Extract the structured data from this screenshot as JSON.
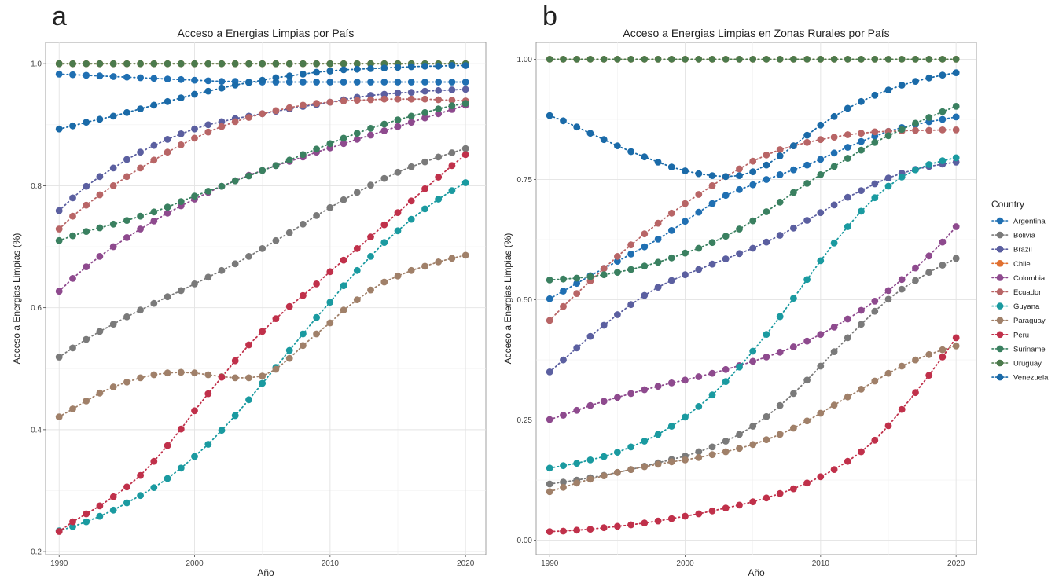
{
  "panels": [
    {
      "letter": "a",
      "title": "Acceso a Energias Limpias por País"
    },
    {
      "letter": "b",
      "title": "Acceso a Energias Limpias en Zonas Rurales por País"
    }
  ],
  "legend": {
    "title": "Country",
    "items": [
      {
        "name": "Argentina",
        "color": "#1f6fb2"
      },
      {
        "name": "Bolivia",
        "color": "#7a7a7a"
      },
      {
        "name": "Brazil",
        "color": "#5b5fa0"
      },
      {
        "name": "Chile",
        "color": "#e07030"
      },
      {
        "name": "Colombia",
        "color": "#8e4a8e"
      },
      {
        "name": "Ecuador",
        "color": "#b86566"
      },
      {
        "name": "Guyana",
        "color": "#1a9aa0"
      },
      {
        "name": "Paraguay",
        "color": "#a08069"
      },
      {
        "name": "Peru",
        "color": "#c0304a"
      },
      {
        "name": "Suriname",
        "color": "#3a8060"
      },
      {
        "name": "Uruguay",
        "color": "#4c7a4c"
      },
      {
        "name": "Venezuela",
        "color": "#1a6aa8"
      }
    ]
  },
  "chart_data": [
    {
      "type": "scatter",
      "title": "Acceso a Energias Limpias por País",
      "xlabel": "Año",
      "ylabel": "Acceso a Energias Limpias (%)",
      "xlim": [
        1989,
        2021.5
      ],
      "ylim": [
        0.195,
        1.035
      ],
      "xticks": [
        1990,
        2000,
        2010,
        2020
      ],
      "yticks": [
        0.2,
        0.4,
        0.6,
        0.8,
        1.0
      ],
      "ytick_labels": [
        "0.2",
        "0.4",
        "0.6",
        "0.8",
        "1.0"
      ],
      "grid": true,
      "x": [
        1990,
        1991,
        1992,
        1993,
        1994,
        1995,
        1996,
        1997,
        1998,
        1999,
        2000,
        2001,
        2002,
        2003,
        2004,
        2005,
        2006,
        2007,
        2008,
        2009,
        2010,
        2011,
        2012,
        2013,
        2014,
        2015,
        2016,
        2017,
        2018,
        2019,
        2020
      ],
      "series": [
        {
          "name": "Argentina",
          "values": [
            0.983,
            0.982,
            0.981,
            0.98,
            0.979,
            0.978,
            0.977,
            0.976,
            0.975,
            0.974,
            0.973,
            0.972,
            0.971,
            0.971,
            0.97,
            0.97,
            0.97,
            0.97,
            0.97,
            0.97,
            0.97,
            0.97,
            0.97,
            0.97,
            0.97,
            0.97,
            0.97,
            0.97,
            0.97,
            0.97,
            0.97
          ]
        },
        {
          "name": "Bolivia",
          "values": [
            0.519,
            0.534,
            0.548,
            0.561,
            0.573,
            0.585,
            0.596,
            0.607,
            0.618,
            0.628,
            0.639,
            0.65,
            0.661,
            0.672,
            0.684,
            0.697,
            0.71,
            0.723,
            0.737,
            0.751,
            0.764,
            0.777,
            0.789,
            0.801,
            0.812,
            0.822,
            0.831,
            0.839,
            0.847,
            0.854,
            0.861
          ]
        },
        {
          "name": "Brazil",
          "values": [
            0.759,
            0.78,
            0.799,
            0.815,
            0.829,
            0.843,
            0.855,
            0.866,
            0.876,
            0.885,
            0.893,
            0.9,
            0.905,
            0.91,
            0.914,
            0.918,
            0.922,
            0.926,
            0.93,
            0.933,
            0.937,
            0.941,
            0.945,
            0.948,
            0.95,
            0.952,
            0.953,
            0.955,
            0.956,
            0.957,
            0.958
          ]
        },
        {
          "name": "Chile",
          "values": [
            1.0,
            1.0,
            1.0,
            1.0,
            1.0,
            1.0,
            1.0,
            1.0,
            1.0,
            1.0,
            1.0,
            1.0,
            1.0,
            1.0,
            1.0,
            1.0,
            1.0,
            1.0,
            1.0,
            1.0,
            1.0,
            1.0,
            1.0,
            1.0,
            1.0,
            1.0,
            1.0,
            1.0,
            1.0,
            1.0,
            1.0
          ]
        },
        {
          "name": "Colombia",
          "values": [
            0.627,
            0.648,
            0.667,
            0.684,
            0.7,
            0.715,
            0.729,
            0.742,
            0.755,
            0.767,
            0.778,
            0.789,
            0.799,
            0.808,
            0.817,
            0.825,
            0.833,
            0.84,
            0.847,
            0.855,
            0.862,
            0.869,
            0.876,
            0.883,
            0.89,
            0.897,
            0.904,
            0.911,
            0.918,
            0.925,
            0.932
          ]
        },
        {
          "name": "Ecuador",
          "values": [
            0.729,
            0.75,
            0.768,
            0.785,
            0.8,
            0.815,
            0.829,
            0.842,
            0.855,
            0.867,
            0.878,
            0.888,
            0.897,
            0.905,
            0.912,
            0.918,
            0.923,
            0.928,
            0.932,
            0.935,
            0.937,
            0.939,
            0.94,
            0.941,
            0.942,
            0.942,
            0.942,
            0.942,
            0.941,
            0.94,
            0.939
          ]
        },
        {
          "name": "Guyana",
          "values": [
            0.234,
            0.241,
            0.249,
            0.258,
            0.268,
            0.28,
            0.292,
            0.305,
            0.32,
            0.337,
            0.356,
            0.376,
            0.399,
            0.423,
            0.449,
            0.476,
            0.502,
            0.53,
            0.557,
            0.584,
            0.609,
            0.636,
            0.661,
            0.684,
            0.707,
            0.726,
            0.745,
            0.762,
            0.778,
            0.792,
            0.805
          ]
        },
        {
          "name": "Paraguay",
          "values": [
            0.421,
            0.434,
            0.447,
            0.46,
            0.47,
            0.478,
            0.485,
            0.49,
            0.493,
            0.494,
            0.493,
            0.49,
            0.487,
            0.485,
            0.485,
            0.488,
            0.499,
            0.517,
            0.538,
            0.557,
            0.575,
            0.596,
            0.613,
            0.629,
            0.642,
            0.652,
            0.661,
            0.668,
            0.675,
            0.681,
            0.686
          ]
        },
        {
          "name": "Peru",
          "values": [
            0.233,
            0.249,
            0.262,
            0.275,
            0.29,
            0.306,
            0.325,
            0.348,
            0.374,
            0.401,
            0.431,
            0.459,
            0.486,
            0.513,
            0.539,
            0.561,
            0.582,
            0.602,
            0.62,
            0.639,
            0.659,
            0.678,
            0.697,
            0.716,
            0.736,
            0.756,
            0.775,
            0.795,
            0.814,
            0.833,
            0.851
          ]
        },
        {
          "name": "Suriname",
          "values": [
            0.71,
            0.718,
            0.725,
            0.731,
            0.737,
            0.743,
            0.75,
            0.757,
            0.765,
            0.774,
            0.783,
            0.791,
            0.799,
            0.808,
            0.816,
            0.825,
            0.833,
            0.842,
            0.851,
            0.86,
            0.869,
            0.878,
            0.886,
            0.894,
            0.901,
            0.908,
            0.914,
            0.92,
            0.926,
            0.931,
            0.935
          ]
        },
        {
          "name": "Uruguay",
          "values": [
            1.0,
            1.0,
            1.0,
            1.0,
            1.0,
            1.0,
            1.0,
            1.0,
            1.0,
            1.0,
            1.0,
            1.0,
            1.0,
            1.0,
            1.0,
            1.0,
            1.0,
            1.0,
            1.0,
            1.0,
            1.0,
            1.0,
            1.0,
            1.0,
            1.0,
            1.0,
            1.0,
            1.0,
            1.0,
            1.0,
            1.0
          ]
        },
        {
          "name": "Venezuela",
          "values": [
            0.893,
            0.898,
            0.904,
            0.909,
            0.914,
            0.92,
            0.926,
            0.932,
            0.938,
            0.944,
            0.95,
            0.955,
            0.96,
            0.965,
            0.969,
            0.973,
            0.977,
            0.98,
            0.983,
            0.986,
            0.988,
            0.99,
            0.991,
            0.992,
            0.993,
            0.994,
            0.995,
            0.996,
            0.996,
            0.997,
            0.997
          ]
        }
      ]
    },
    {
      "type": "scatter",
      "title": "Acceso a Energias Limpias en Zonas Rurales por País",
      "xlabel": "Año",
      "ylabel": "Acceso a Energias Limpias (%)",
      "xlim": [
        1989,
        2021.5
      ],
      "ylim": [
        -0.03,
        1.035
      ],
      "xticks": [
        1990,
        2000,
        2010,
        2020
      ],
      "yticks": [
        0.0,
        0.25,
        0.5,
        0.75,
        1.0
      ],
      "ytick_labels": [
        "0.00",
        "0.25",
        "0.50",
        "0.75",
        "1.00"
      ],
      "grid": true,
      "x": [
        1990,
        1991,
        1992,
        1993,
        1994,
        1995,
        1996,
        1997,
        1998,
        1999,
        2000,
        2001,
        2002,
        2003,
        2004,
        2005,
        2006,
        2007,
        2008,
        2009,
        2010,
        2011,
        2012,
        2013,
        2014,
        2015,
        2016,
        2017,
        2018,
        2019,
        2020
      ],
      "series": [
        {
          "name": "Argentina",
          "values": [
            0.502,
            0.518,
            0.534,
            0.55,
            0.565,
            0.58,
            0.595,
            0.61,
            0.626,
            0.644,
            0.663,
            0.682,
            0.7,
            0.717,
            0.729,
            0.739,
            0.75,
            0.76,
            0.77,
            0.78,
            0.792,
            0.805,
            0.817,
            0.829,
            0.84,
            0.85,
            0.858,
            0.864,
            0.87,
            0.875,
            0.88
          ]
        },
        {
          "name": "Bolivia",
          "values": [
            0.117,
            0.121,
            0.125,
            0.13,
            0.135,
            0.141,
            0.147,
            0.154,
            0.161,
            0.168,
            0.175,
            0.184,
            0.194,
            0.206,
            0.22,
            0.237,
            0.257,
            0.28,
            0.305,
            0.333,
            0.362,
            0.392,
            0.421,
            0.449,
            0.476,
            0.501,
            0.522,
            0.54,
            0.557,
            0.572,
            0.586
          ]
        },
        {
          "name": "Brazil",
          "values": [
            0.35,
            0.375,
            0.4,
            0.424,
            0.447,
            0.469,
            0.49,
            0.509,
            0.526,
            0.54,
            0.552,
            0.563,
            0.574,
            0.585,
            0.596,
            0.607,
            0.62,
            0.634,
            0.649,
            0.665,
            0.681,
            0.697,
            0.713,
            0.727,
            0.741,
            0.753,
            0.763,
            0.771,
            0.777,
            0.782,
            0.786
          ]
        },
        {
          "name": "Chile",
          "values": [
            1.0,
            1.0,
            1.0,
            1.0,
            1.0,
            1.0,
            1.0,
            1.0,
            1.0,
            1.0,
            1.0,
            1.0,
            1.0,
            1.0,
            1.0,
            1.0,
            1.0,
            1.0,
            1.0,
            1.0,
            1.0,
            1.0,
            1.0,
            1.0,
            1.0,
            1.0,
            1.0,
            1.0,
            1.0,
            1.0,
            1.0
          ]
        },
        {
          "name": "Colombia",
          "values": [
            0.251,
            0.26,
            0.27,
            0.28,
            0.289,
            0.297,
            0.305,
            0.313,
            0.32,
            0.327,
            0.333,
            0.34,
            0.347,
            0.355,
            0.363,
            0.372,
            0.381,
            0.391,
            0.402,
            0.414,
            0.428,
            0.443,
            0.46,
            0.478,
            0.497,
            0.519,
            0.542,
            0.566,
            0.591,
            0.62,
            0.652
          ]
        },
        {
          "name": "Ecuador",
          "values": [
            0.457,
            0.486,
            0.513,
            0.539,
            0.565,
            0.59,
            0.614,
            0.637,
            0.659,
            0.68,
            0.7,
            0.719,
            0.737,
            0.756,
            0.772,
            0.788,
            0.801,
            0.812,
            0.82,
            0.827,
            0.833,
            0.838,
            0.843,
            0.846,
            0.849,
            0.85,
            0.851,
            0.852,
            0.852,
            0.853,
            0.853
          ]
        },
        {
          "name": "Guyana",
          "values": [
            0.15,
            0.155,
            0.16,
            0.167,
            0.174,
            0.183,
            0.194,
            0.206,
            0.22,
            0.237,
            0.256,
            0.278,
            0.302,
            0.33,
            0.36,
            0.393,
            0.428,
            0.465,
            0.503,
            0.542,
            0.581,
            0.618,
            0.652,
            0.684,
            0.712,
            0.736,
            0.755,
            0.77,
            0.781,
            0.789,
            0.795
          ]
        },
        {
          "name": "Paraguay",
          "values": [
            0.101,
            0.11,
            0.119,
            0.127,
            0.134,
            0.141,
            0.147,
            0.153,
            0.158,
            0.163,
            0.167,
            0.172,
            0.178,
            0.184,
            0.191,
            0.199,
            0.209,
            0.22,
            0.233,
            0.248,
            0.264,
            0.281,
            0.298,
            0.314,
            0.331,
            0.347,
            0.362,
            0.375,
            0.386,
            0.396,
            0.404
          ]
        },
        {
          "name": "Peru",
          "values": [
            0.018,
            0.019,
            0.021,
            0.023,
            0.026,
            0.029,
            0.032,
            0.036,
            0.04,
            0.045,
            0.05,
            0.055,
            0.061,
            0.067,
            0.073,
            0.08,
            0.088,
            0.097,
            0.107,
            0.119,
            0.132,
            0.147,
            0.164,
            0.184,
            0.208,
            0.238,
            0.272,
            0.307,
            0.343,
            0.381,
            0.421
          ]
        },
        {
          "name": "Suriname",
          "values": [
            0.541,
            0.543,
            0.545,
            0.548,
            0.552,
            0.557,
            0.563,
            0.57,
            0.578,
            0.587,
            0.597,
            0.607,
            0.619,
            0.632,
            0.647,
            0.664,
            0.683,
            0.703,
            0.723,
            0.742,
            0.76,
            0.777,
            0.794,
            0.811,
            0.827,
            0.841,
            0.854,
            0.867,
            0.879,
            0.891,
            0.902
          ]
        },
        {
          "name": "Uruguay",
          "values": [
            1.0,
            1.0,
            1.0,
            1.0,
            1.0,
            1.0,
            1.0,
            1.0,
            1.0,
            1.0,
            1.0,
            1.0,
            1.0,
            1.0,
            1.0,
            1.0,
            1.0,
            1.0,
            1.0,
            1.0,
            1.0,
            1.0,
            1.0,
            1.0,
            1.0,
            1.0,
            1.0,
            1.0,
            1.0,
            1.0,
            1.0
          ]
        },
        {
          "name": "Venezuela",
          "values": [
            0.883,
            0.872,
            0.859,
            0.846,
            0.833,
            0.82,
            0.808,
            0.797,
            0.786,
            0.776,
            0.768,
            0.762,
            0.758,
            0.756,
            0.758,
            0.766,
            0.78,
            0.799,
            0.82,
            0.842,
            0.863,
            0.881,
            0.898,
            0.912,
            0.925,
            0.936,
            0.946,
            0.954,
            0.961,
            0.967,
            0.972
          ]
        }
      ]
    }
  ]
}
